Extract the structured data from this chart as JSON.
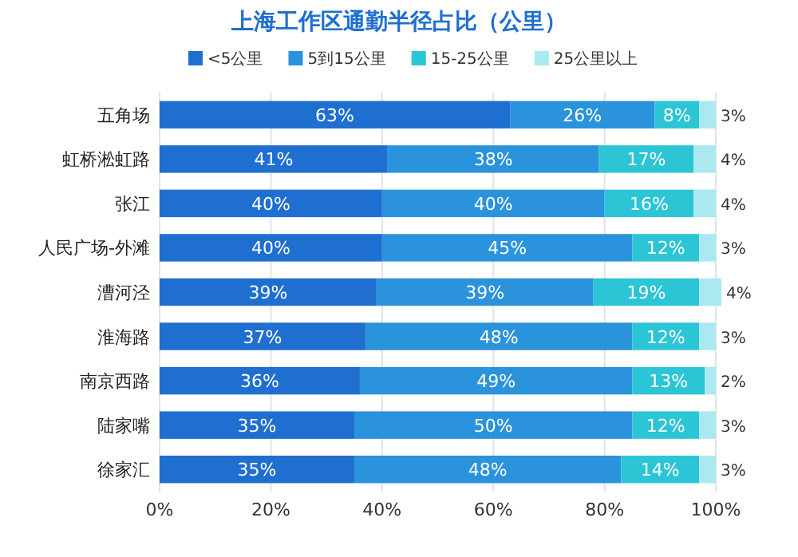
{
  "chart_data": {
    "type": "bar",
    "title": "上海工作区通勤半径占比（公里）",
    "stacked": true,
    "orientation": "horizontal",
    "categories": [
      "五角场",
      "虹桥淞虹路",
      "张江",
      "人民广场-外滩",
      "漕河泾",
      "淮海路",
      "南京西路",
      "陆家嘴",
      "徐家汇"
    ],
    "series": [
      {
        "name": "<5公里",
        "color": "#1f6fd0",
        "values": [
          63,
          41,
          40,
          40,
          39,
          37,
          36,
          35,
          35
        ],
        "value_labels": [
          "63%",
          "41%",
          "40%",
          "40%",
          "39%",
          "37%",
          "36%",
          "35%",
          "35%"
        ]
      },
      {
        "name": "5到15公里",
        "color": "#2b93dc",
        "values": [
          26,
          38,
          40,
          45,
          39,
          48,
          49,
          50,
          48
        ],
        "value_labels": [
          "26%",
          "38%",
          "40%",
          "45%",
          "39%",
          "48%",
          "49%",
          "50%",
          "48%"
        ]
      },
      {
        "name": "15-25公里",
        "color": "#2cc5d6",
        "values": [
          8,
          17,
          16,
          12,
          19,
          12,
          13,
          12,
          14
        ],
        "value_labels": [
          "8%",
          "17%",
          "16%",
          "12%",
          "19%",
          "12%",
          "13%",
          "12%",
          "14%"
        ]
      },
      {
        "name": "25公里以上",
        "color": "#a9e9ef",
        "values": [
          3,
          4,
          4,
          3,
          4,
          3,
          2,
          3,
          3
        ],
        "value_labels": [
          "3%",
          "4%",
          "4%",
          "3%",
          "4%",
          "3%",
          "2%",
          "3%",
          "3%"
        ]
      }
    ],
    "xlim": [
      0,
      101
    ],
    "xticks": [
      {
        "value": 0,
        "label": "0%"
      },
      {
        "value": 20,
        "label": "20%"
      },
      {
        "value": 40,
        "label": "40%"
      },
      {
        "value": 60,
        "label": "60%"
      },
      {
        "value": 80,
        "label": "80%"
      },
      {
        "value": 100,
        "label": "100%"
      }
    ],
    "grid": "x",
    "legend": "top"
  }
}
